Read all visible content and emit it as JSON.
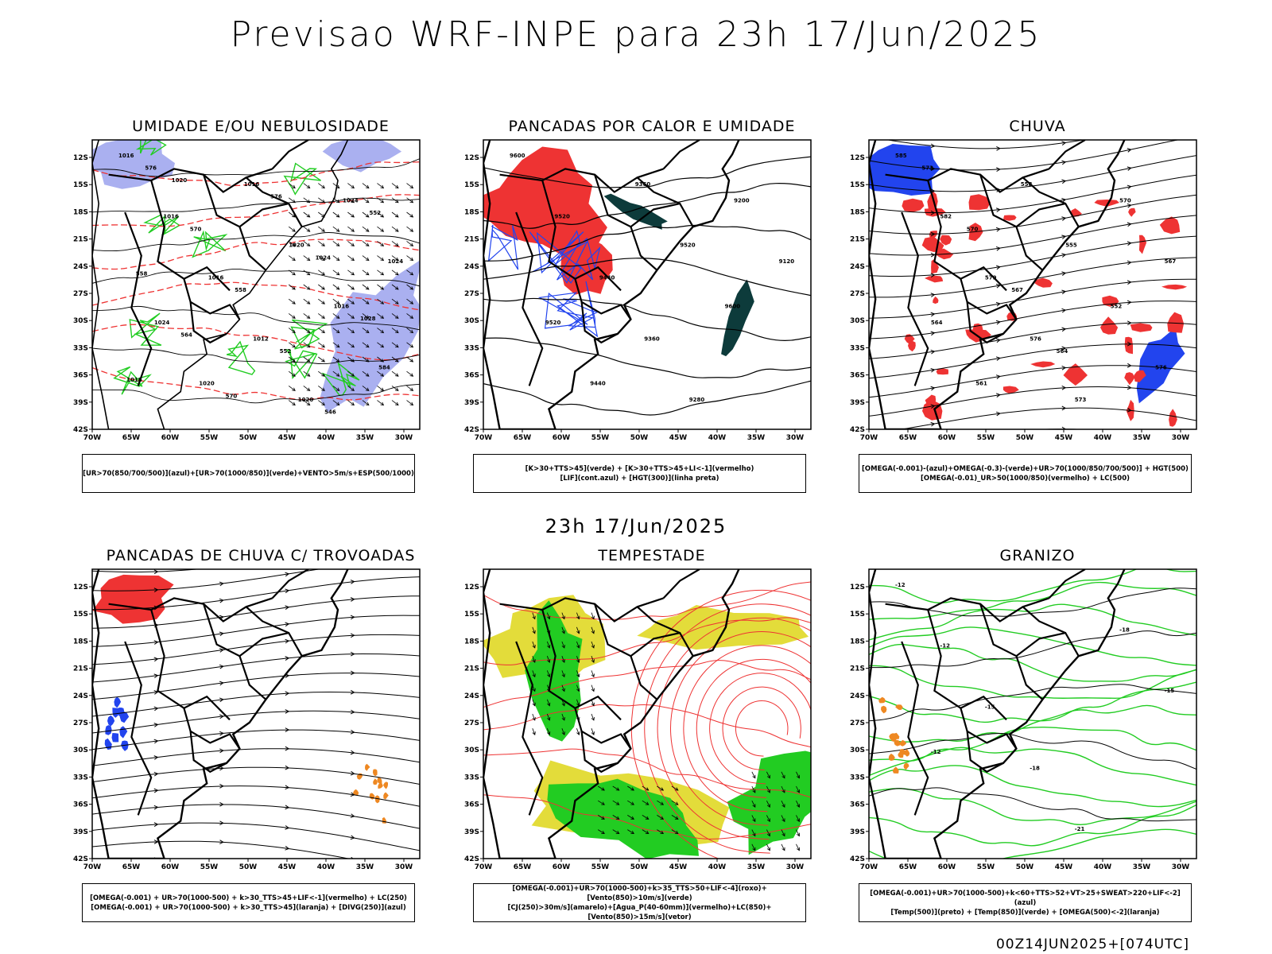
{
  "title": "Previsao WRF-INPE  para 23h 17/Jun/2025",
  "subtitle_time": "23h 17/Jun/2025",
  "footer": "00Z14JUN2025+[074UTC]",
  "lat_labels": [
    "12S",
    "15S",
    "18S",
    "21S",
    "24S",
    "27S",
    "30S",
    "33S",
    "36S",
    "39S",
    "42S"
  ],
  "lon_labels": [
    "70W",
    "65W",
    "60W",
    "55W",
    "50W",
    "45W",
    "40W",
    "35W",
    "30W"
  ],
  "colors": {
    "blue": "#2244ee",
    "lavender": "#aab0f0",
    "green": "#22cc22",
    "red": "#ee3333",
    "darkgreen": "#0d3b3b",
    "yellow": "#e3dc3a",
    "orange": "#ee8822",
    "contour": "#000000"
  },
  "panels": [
    {
      "title": "UMIDADE E/OU NEBULOSIDADE",
      "legend1": "[UR>70(850/700/500)](azul)+[UR>70(1000/850)](verde)+VENTO>5m/s+ESP(500/1000)",
      "legend2": ""
    },
    {
      "title": "PANCADAS POR CALOR E UMIDADE",
      "legend1": "[K>30+TTS>45](verde) + [K>30+TTS>45+LI<-1](vermelho)",
      "legend2": "[LIF](cont.azul) + [HGT(300)](linha preta)"
    },
    {
      "title": "CHUVA",
      "legend1": "[OMEGA(-0.001)-(azul)+OMEGA(-0.3)-(verde)+UR>70(1000/850/700/500)] + HGT(500)",
      "legend2": "[OMEGA(-0.01)_UR>50(1000/850)(vermelho) + LC(500)"
    },
    {
      "title": "PANCADAS DE CHUVA C/ TROVOADAS",
      "legend1": "[OMEGA(-0.001) + UR>70(1000-500) + k>30_TTS>45+LIF<-1](vermelho) + LC(250)",
      "legend2": "[OMEGA(-0.001) + UR>70(1000-500) + k>30_TTS>45](laranja) + [DIVG(250)](azul)"
    },
    {
      "title": "TEMPESTADE",
      "legend1": "[OMEGA(-0.001)+UR>70(1000-500)+k>35_TTS>50+LIF<-4](roxo)+[Vento(850)>10m/s](verde)",
      "legend2": "[CJ(250)>30m/s](amarelo)+[Agua_P(40-60mm)](vermelho)+LC(850)+[Vento(850)>15m/s](vetor)"
    },
    {
      "title": "GRANIZO",
      "legend1": "[OMEGA(-0.001)+UR>70(1000-500)+k<60+TTS>52+VT>25+SWEAT>220+LIF<-2](azul)",
      "legend2": "[Temp(500)](preto) + [Temp(850)](verde) + [OMEGA(500)<-2](laranja)"
    }
  ],
  "contour_labels": {
    "p1": [
      "1016",
      "1016",
      "1016",
      "1012",
      "1020",
      "1024",
      "1024",
      "1024",
      "1020",
      "1016",
      "1020",
      "1016",
      "584",
      "576",
      "570",
      "558",
      "552",
      "546",
      "552",
      "558",
      "564",
      "570",
      "576",
      "1024",
      "1028",
      "1016",
      "1020"
    ],
    "p2": [
      "9600",
      "9520",
      "9440",
      "9360",
      "9280",
      "9200",
      "9120",
      "9520",
      "9440",
      "9360",
      "9520",
      "9600"
    ],
    "p3": [
      "585",
      "582",
      "579",
      "576",
      "573",
      "570",
      "567",
      "564",
      "561",
      "558",
      "555",
      "552",
      "576",
      "573",
      "570",
      "567",
      "564"
    ],
    "p6": [
      "-12",
      "-12",
      "-15",
      "-18",
      "-21",
      "-18",
      "-15",
      "-12"
    ]
  }
}
